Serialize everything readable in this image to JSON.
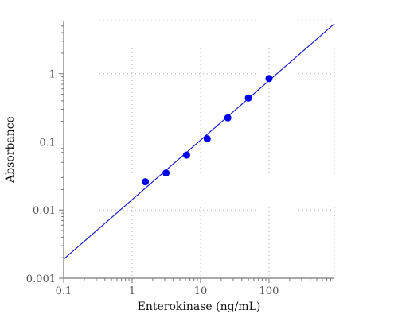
{
  "chart_data": {
    "type": "scatter",
    "title": "",
    "xlabel": "Enterokinase (ng/mL)",
    "ylabel": "Absorbance",
    "x_scale": "log",
    "y_scale": "log",
    "xlim": [
      0.1,
      900
    ],
    "ylim": [
      0.001,
      6
    ],
    "grid": true,
    "x_ticks": [
      {
        "value": 0.1,
        "label": "0.1"
      },
      {
        "value": 1,
        "label": "1"
      },
      {
        "value": 10,
        "label": "10"
      },
      {
        "value": 100,
        "label": "100"
      }
    ],
    "y_ticks": [
      {
        "value": 0.001,
        "label": "0.001"
      },
      {
        "value": 0.01,
        "label": "0.01"
      },
      {
        "value": 0.1,
        "label": "0.1"
      },
      {
        "value": 1,
        "label": "1"
      }
    ],
    "series": [
      {
        "type": "scatter",
        "color": "#0000ee",
        "points": [
          {
            "x": 1.56,
            "y": 0.026
          },
          {
            "x": 3.13,
            "y": 0.035
          },
          {
            "x": 6.25,
            "y": 0.064
          },
          {
            "x": 12.5,
            "y": 0.111
          },
          {
            "x": 25,
            "y": 0.225
          },
          {
            "x": 50,
            "y": 0.44
          },
          {
            "x": 100,
            "y": 0.85
          }
        ]
      },
      {
        "type": "line",
        "color": "#2020cc",
        "points": [
          {
            "x": 0.1,
            "y": 0.0019
          },
          {
            "x": 900,
            "y": 5.4
          }
        ]
      }
    ]
  }
}
